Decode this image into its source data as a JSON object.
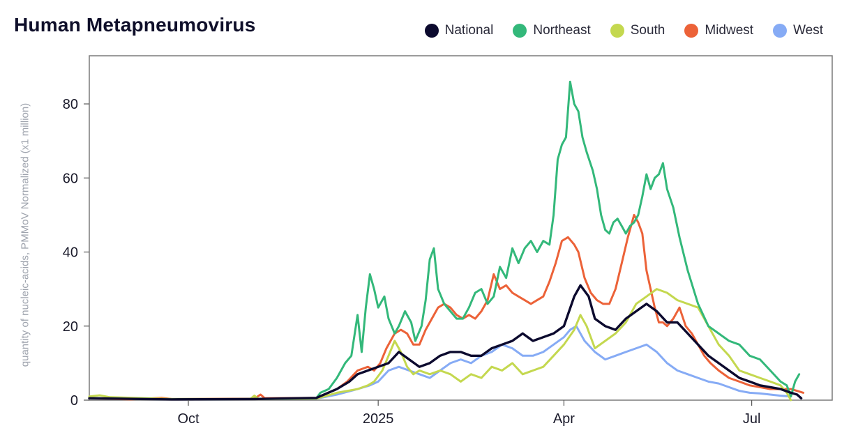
{
  "title": "Human Metapneumovirus",
  "chart_data": {
    "type": "line",
    "title": "Human Metapneumovirus",
    "xlabel": "",
    "ylabel": "quantity of nucleic-acids, PMMoV Normalized (x1 million)",
    "x_unit": "days since 2024-08-14",
    "xlim": [
      0,
      360
    ],
    "ylim": [
      0,
      93
    ],
    "yticks": [
      0,
      20,
      40,
      60,
      80
    ],
    "xticks": [
      {
        "x": 48,
        "label": "Oct"
      },
      {
        "x": 140,
        "label": "2025"
      },
      {
        "x": 230,
        "label": "Apr"
      },
      {
        "x": 321,
        "label": "Jul"
      }
    ],
    "legend_position": "top-right",
    "grid": false,
    "series": [
      {
        "name": "National",
        "color": "#0c0a2e",
        "points": [
          [
            0,
            0.5
          ],
          [
            40,
            0.2
          ],
          [
            80,
            0.3
          ],
          [
            110,
            0.6
          ],
          [
            120,
            3
          ],
          [
            126,
            5
          ],
          [
            130,
            7
          ],
          [
            135,
            8
          ],
          [
            140,
            9
          ],
          [
            145,
            10
          ],
          [
            150,
            13
          ],
          [
            155,
            11
          ],
          [
            160,
            9
          ],
          [
            165,
            10
          ],
          [
            170,
            12
          ],
          [
            175,
            13
          ],
          [
            180,
            13
          ],
          [
            185,
            12
          ],
          [
            190,
            12
          ],
          [
            195,
            14
          ],
          [
            200,
            15
          ],
          [
            205,
            16
          ],
          [
            210,
            18
          ],
          [
            215,
            16
          ],
          [
            220,
            17
          ],
          [
            225,
            18
          ],
          [
            230,
            20
          ],
          [
            235,
            28
          ],
          [
            238,
            31
          ],
          [
            242,
            28
          ],
          [
            245,
            22
          ],
          [
            250,
            20
          ],
          [
            255,
            19
          ],
          [
            260,
            22
          ],
          [
            265,
            24
          ],
          [
            270,
            26
          ],
          [
            275,
            24
          ],
          [
            280,
            21
          ],
          [
            285,
            21
          ],
          [
            290,
            18
          ],
          [
            295,
            15
          ],
          [
            300,
            12
          ],
          [
            305,
            10
          ],
          [
            310,
            8
          ],
          [
            315,
            6
          ],
          [
            320,
            5
          ],
          [
            325,
            4
          ],
          [
            330,
            3.5
          ],
          [
            335,
            3
          ],
          [
            340,
            2
          ],
          [
            343,
            1.5
          ],
          [
            345,
            0.5
          ]
        ]
      },
      {
        "name": "Northeast",
        "color": "#33b87a",
        "points": [
          [
            0,
            0.5
          ],
          [
            40,
            0.2
          ],
          [
            80,
            0.3
          ],
          [
            110,
            0.5
          ],
          [
            112,
            2
          ],
          [
            116,
            3
          ],
          [
            120,
            6
          ],
          [
            124,
            10
          ],
          [
            127,
            12
          ],
          [
            130,
            23
          ],
          [
            132,
            13
          ],
          [
            134,
            25
          ],
          [
            136,
            34
          ],
          [
            138,
            30
          ],
          [
            140,
            25
          ],
          [
            143,
            28
          ],
          [
            145,
            22
          ],
          [
            148,
            18
          ],
          [
            150,
            20
          ],
          [
            153,
            24
          ],
          [
            156,
            21
          ],
          [
            158,
            16
          ],
          [
            161,
            20
          ],
          [
            163,
            27
          ],
          [
            165,
            38
          ],
          [
            167,
            41
          ],
          [
            169,
            30
          ],
          [
            172,
            26
          ],
          [
            175,
            24
          ],
          [
            178,
            22
          ],
          [
            181,
            22
          ],
          [
            184,
            25
          ],
          [
            187,
            29
          ],
          [
            190,
            30
          ],
          [
            193,
            26
          ],
          [
            196,
            28
          ],
          [
            199,
            36
          ],
          [
            202,
            33
          ],
          [
            205,
            41
          ],
          [
            208,
            37
          ],
          [
            211,
            41
          ],
          [
            214,
            43
          ],
          [
            217,
            40
          ],
          [
            220,
            43
          ],
          [
            223,
            42
          ],
          [
            225,
            50
          ],
          [
            227,
            65
          ],
          [
            229,
            69
          ],
          [
            231,
            71
          ],
          [
            233,
            86
          ],
          [
            235,
            80
          ],
          [
            237,
            78
          ],
          [
            239,
            71
          ],
          [
            241,
            67
          ],
          [
            244,
            62
          ],
          [
            246,
            57
          ],
          [
            248,
            50
          ],
          [
            250,
            46
          ],
          [
            252,
            45
          ],
          [
            254,
            48
          ],
          [
            256,
            49
          ],
          [
            258,
            47
          ],
          [
            260,
            45
          ],
          [
            262,
            47
          ],
          [
            264,
            48
          ],
          [
            266,
            50
          ],
          [
            268,
            55
          ],
          [
            270,
            61
          ],
          [
            272,
            57
          ],
          [
            274,
            60
          ],
          [
            276,
            61
          ],
          [
            278,
            64
          ],
          [
            280,
            57
          ],
          [
            283,
            52
          ],
          [
            286,
            44
          ],
          [
            290,
            35
          ],
          [
            295,
            26
          ],
          [
            300,
            20
          ],
          [
            305,
            18
          ],
          [
            310,
            16
          ],
          [
            315,
            15
          ],
          [
            320,
            12
          ],
          [
            325,
            11
          ],
          [
            330,
            8
          ],
          [
            335,
            5
          ],
          [
            338,
            4
          ],
          [
            340,
            1
          ],
          [
            342,
            5
          ],
          [
            344,
            7
          ]
        ]
      },
      {
        "name": "South",
        "color": "#c4d84f",
        "points": [
          [
            0,
            1
          ],
          [
            5,
            1.3
          ],
          [
            10,
            0.8
          ],
          [
            40,
            0.3
          ],
          [
            78,
            0.3
          ],
          [
            80,
            1.2
          ],
          [
            82,
            0.3
          ],
          [
            110,
            0.4
          ],
          [
            120,
            2
          ],
          [
            130,
            3
          ],
          [
            135,
            4
          ],
          [
            138,
            5
          ],
          [
            142,
            8
          ],
          [
            145,
            12
          ],
          [
            148,
            16
          ],
          [
            151,
            13
          ],
          [
            154,
            9
          ],
          [
            157,
            7
          ],
          [
            160,
            8
          ],
          [
            165,
            7
          ],
          [
            170,
            8
          ],
          [
            175,
            7
          ],
          [
            180,
            5
          ],
          [
            185,
            7
          ],
          [
            190,
            6
          ],
          [
            195,
            9
          ],
          [
            200,
            8
          ],
          [
            205,
            10
          ],
          [
            210,
            7
          ],
          [
            215,
            8
          ],
          [
            220,
            9
          ],
          [
            225,
            12
          ],
          [
            230,
            15
          ],
          [
            235,
            19
          ],
          [
            238,
            23
          ],
          [
            241,
            20
          ],
          [
            245,
            14
          ],
          [
            250,
            16
          ],
          [
            255,
            18
          ],
          [
            260,
            21
          ],
          [
            265,
            26
          ],
          [
            270,
            28
          ],
          [
            275,
            30
          ],
          [
            280,
            29
          ],
          [
            285,
            27
          ],
          [
            290,
            26
          ],
          [
            295,
            25
          ],
          [
            300,
            20
          ],
          [
            305,
            15
          ],
          [
            310,
            12
          ],
          [
            315,
            8
          ],
          [
            320,
            7
          ],
          [
            325,
            6
          ],
          [
            330,
            5
          ],
          [
            335,
            4
          ],
          [
            338,
            2
          ],
          [
            340,
            0
          ]
        ]
      },
      {
        "name": "Midwest",
        "color": "#ec6238",
        "points": [
          [
            0,
            0.5
          ],
          [
            20,
            0.2
          ],
          [
            35,
            0.6
          ],
          [
            40,
            0.3
          ],
          [
            80,
            0.4
          ],
          [
            83,
            1.5
          ],
          [
            85,
            0.5
          ],
          [
            110,
            0.6
          ],
          [
            120,
            3
          ],
          [
            125,
            5
          ],
          [
            130,
            8
          ],
          [
            135,
            9
          ],
          [
            138,
            8
          ],
          [
            141,
            10
          ],
          [
            144,
            14
          ],
          [
            148,
            18
          ],
          [
            151,
            19
          ],
          [
            154,
            18
          ],
          [
            157,
            15
          ],
          [
            160,
            15
          ],
          [
            163,
            19
          ],
          [
            166,
            22
          ],
          [
            169,
            25
          ],
          [
            172,
            26
          ],
          [
            175,
            25
          ],
          [
            178,
            23
          ],
          [
            181,
            22
          ],
          [
            184,
            23
          ],
          [
            187,
            22
          ],
          [
            190,
            24
          ],
          [
            193,
            27
          ],
          [
            196,
            34
          ],
          [
            199,
            30
          ],
          [
            202,
            31
          ],
          [
            205,
            29
          ],
          [
            208,
            28
          ],
          [
            211,
            27
          ],
          [
            214,
            26
          ],
          [
            217,
            27
          ],
          [
            220,
            28
          ],
          [
            223,
            32
          ],
          [
            226,
            37
          ],
          [
            229,
            43
          ],
          [
            232,
            44
          ],
          [
            235,
            42
          ],
          [
            237,
            40
          ],
          [
            240,
            33
          ],
          [
            243,
            29
          ],
          [
            246,
            27
          ],
          [
            249,
            26
          ],
          [
            252,
            26
          ],
          [
            255,
            30
          ],
          [
            258,
            37
          ],
          [
            261,
            44
          ],
          [
            264,
            50
          ],
          [
            266,
            48
          ],
          [
            268,
            45
          ],
          [
            270,
            35
          ],
          [
            272,
            30
          ],
          [
            274,
            25
          ],
          [
            276,
            21
          ],
          [
            278,
            21
          ],
          [
            280,
            20
          ],
          [
            283,
            22
          ],
          [
            286,
            25
          ],
          [
            289,
            20
          ],
          [
            292,
            18
          ],
          [
            295,
            15
          ],
          [
            298,
            12
          ],
          [
            301,
            10
          ],
          [
            305,
            8
          ],
          [
            310,
            6
          ],
          [
            315,
            5
          ],
          [
            320,
            4
          ],
          [
            325,
            3.5
          ],
          [
            330,
            3
          ],
          [
            335,
            3
          ],
          [
            340,
            3
          ],
          [
            343,
            2.5
          ],
          [
            346,
            2
          ]
        ]
      },
      {
        "name": "West",
        "color": "#86abf5",
        "points": [
          [
            0,
            0.5
          ],
          [
            40,
            0.2
          ],
          [
            80,
            0.3
          ],
          [
            110,
            0.4
          ],
          [
            120,
            1.5
          ],
          [
            130,
            3
          ],
          [
            136,
            4
          ],
          [
            140,
            5
          ],
          [
            145,
            8
          ],
          [
            150,
            9
          ],
          [
            155,
            8
          ],
          [
            160,
            7
          ],
          [
            165,
            6
          ],
          [
            170,
            8
          ],
          [
            175,
            10
          ],
          [
            180,
            11
          ],
          [
            185,
            10
          ],
          [
            190,
            12
          ],
          [
            195,
            13
          ],
          [
            200,
            15
          ],
          [
            205,
            14
          ],
          [
            210,
            12
          ],
          [
            215,
            12
          ],
          [
            220,
            13
          ],
          [
            225,
            15
          ],
          [
            230,
            17
          ],
          [
            233,
            19
          ],
          [
            236,
            20
          ],
          [
            240,
            16
          ],
          [
            245,
            13
          ],
          [
            250,
            11
          ],
          [
            255,
            12
          ],
          [
            260,
            13
          ],
          [
            265,
            14
          ],
          [
            270,
            15
          ],
          [
            275,
            13
          ],
          [
            280,
            10
          ],
          [
            285,
            8
          ],
          [
            290,
            7
          ],
          [
            295,
            6
          ],
          [
            300,
            5
          ],
          [
            305,
            4.5
          ],
          [
            310,
            3.5
          ],
          [
            315,
            2.5
          ],
          [
            320,
            2
          ],
          [
            325,
            1.8
          ],
          [
            330,
            1.5
          ],
          [
            335,
            1.2
          ],
          [
            340,
            1
          ]
        ]
      }
    ]
  }
}
